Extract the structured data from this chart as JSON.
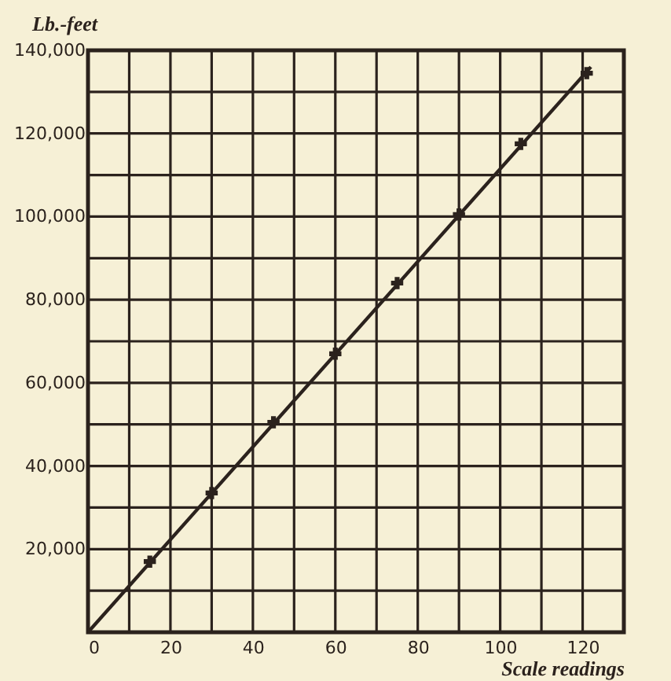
{
  "chart_data": {
    "type": "scatter",
    "xlabel": "Scale readings",
    "ylabel": "Lb.-feet",
    "xlim": [
      0,
      130
    ],
    "ylim": [
      0,
      140000
    ],
    "xticks": [
      0,
      {
        "value": 10,
        "label": null
      },
      20,
      {
        "value": 30,
        "label": null
      },
      40,
      {
        "value": 50,
        "label": null
      },
      60,
      {
        "value": 70,
        "label": null
      },
      80,
      {
        "value": 90,
        "label": null
      },
      100,
      {
        "value": 110,
        "label": null
      },
      120,
      {
        "value": 130,
        "label": null
      }
    ],
    "yticks": [
      {
        "value": 0,
        "label": null
      },
      {
        "value": 10000,
        "label": null
      },
      {
        "value": 20000,
        "label": "20,000"
      },
      {
        "value": 30000,
        "label": null
      },
      {
        "value": 40000,
        "label": "40,000"
      },
      {
        "value": 50000,
        "label": null
      },
      {
        "value": 60000,
        "label": "60,000"
      },
      {
        "value": 70000,
        "label": null
      },
      {
        "value": 80000,
        "label": "80,000"
      },
      {
        "value": 90000,
        "label": null
      },
      {
        "value": 100000,
        "label": "100,000"
      },
      {
        "value": 110000,
        "label": null
      },
      {
        "value": 120000,
        "label": "120,000"
      },
      {
        "value": 130000,
        "label": null
      },
      {
        "value": 140000,
        "label": "140,000"
      }
    ],
    "grid": true,
    "marker": "cross",
    "series": [
      {
        "type": "line",
        "color": "#2b221d",
        "marker": "none",
        "x": [
          0,
          122
        ],
        "values": [
          0,
          136000
        ]
      },
      {
        "color": "#2b221d",
        "x": [
          15,
          30,
          45,
          60,
          75,
          90,
          105,
          121
        ],
        "values": [
          17000,
          33500,
          50500,
          67000,
          84000,
          100500,
          117500,
          134500
        ]
      }
    ]
  }
}
